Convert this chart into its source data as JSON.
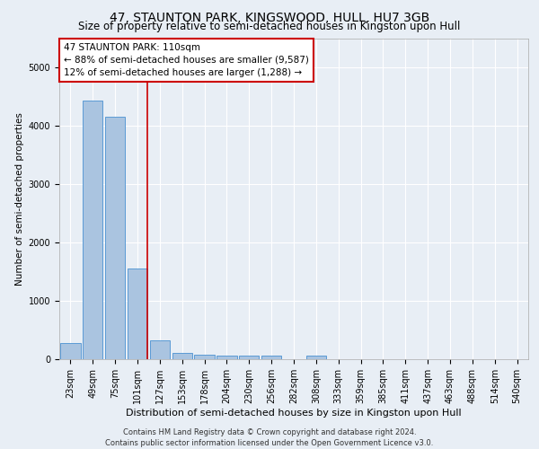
{
  "title": "47, STAUNTON PARK, KINGSWOOD, HULL, HU7 3GB",
  "subtitle": "Size of property relative to semi-detached houses in Kingston upon Hull",
  "xlabel": "Distribution of semi-detached houses by size in Kingston upon Hull",
  "ylabel": "Number of semi-detached properties",
  "footer_line1": "Contains HM Land Registry data © Crown copyright and database right 2024.",
  "footer_line2": "Contains public sector information licensed under the Open Government Licence v3.0.",
  "categories": [
    "23sqm",
    "49sqm",
    "75sqm",
    "101sqm",
    "127sqm",
    "153sqm",
    "178sqm",
    "204sqm",
    "230sqm",
    "256sqm",
    "282sqm",
    "308sqm",
    "333sqm",
    "359sqm",
    "385sqm",
    "411sqm",
    "437sqm",
    "463sqm",
    "488sqm",
    "514sqm",
    "540sqm"
  ],
  "values": [
    270,
    4430,
    4150,
    1560,
    320,
    115,
    75,
    65,
    60,
    55,
    0,
    60,
    0,
    0,
    0,
    0,
    0,
    0,
    0,
    0,
    0
  ],
  "bar_color": "#aac4e0",
  "bar_edge_color": "#5b9bd5",
  "annotation_text_line1": "47 STAUNTON PARK: 110sqm",
  "annotation_text_line2": "← 88% of semi-detached houses are smaller (9,587)",
  "annotation_text_line3": "12% of semi-detached houses are larger (1,288) →",
  "vline_color": "#cc0000",
  "annotation_box_facecolor": "#ffffff",
  "annotation_box_edgecolor": "#cc0000",
  "vline_x_index": 3.43,
  "ylim": [
    0,
    5500
  ],
  "background_color": "#e8eef5",
  "plot_background": "#e8eef5",
  "grid_color": "#ffffff",
  "title_fontsize": 10,
  "subtitle_fontsize": 8.5,
  "xlabel_fontsize": 8,
  "ylabel_fontsize": 7.5,
  "tick_fontsize": 7,
  "annotation_fontsize": 7.5,
  "footer_fontsize": 6
}
